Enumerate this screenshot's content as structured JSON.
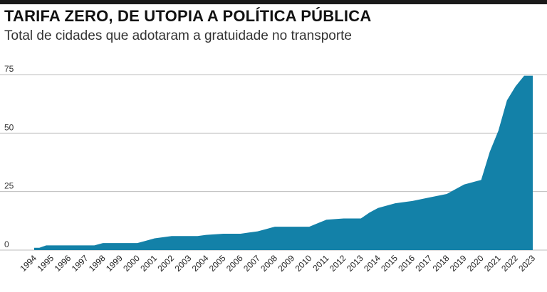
{
  "title": "TARIFA ZERO, DE UTOPIA A POLÍTICA PÚBLICA",
  "subtitle": "Total de cidades que adotaram a gratuidade no transporte",
  "colors": {
    "area": "#1381a8",
    "grid": "#bdbdbd",
    "bar": "#1a1a1a"
  },
  "chart_data": {
    "type": "area",
    "title": "TARIFA ZERO, DE UTOPIA A POLÍTICA PÚBLICA",
    "subtitle": "Total de cidades que adotaram a gratuidade no transporte",
    "xlabel": "",
    "ylabel": "",
    "ylim": [
      0,
      75
    ],
    "yticks": [
      0,
      25,
      50,
      75
    ],
    "grid": true,
    "categories": [
      "1994",
      "1995",
      "1996",
      "1997",
      "1998",
      "1999",
      "2000",
      "2001",
      "2002",
      "2003",
      "2004",
      "2005",
      "2006",
      "2007",
      "2008",
      "2009",
      "2010",
      "2011",
      "2012",
      "2013",
      "2014",
      "2015",
      "2016",
      "2017",
      "2018",
      "2019",
      "2020",
      "2021",
      "2022",
      "2023"
    ],
    "x": [
      1994.0,
      1994.3,
      1994.7,
      1995,
      1996,
      1997,
      1997.5,
      1998,
      1999,
      2000,
      2000.5,
      2001,
      2001.5,
      2002,
      2003,
      2003.5,
      2004,
      2005,
      2006,
      2006.5,
      2007,
      2007.5,
      2008,
      2009,
      2010,
      2010.5,
      2011,
      2012,
      2013,
      2013.5,
      2014,
      2015,
      2016,
      2017,
      2018,
      2019,
      2020,
      2020.5,
      2021,
      2021.5,
      2022,
      2022.5,
      2023
    ],
    "values": [
      1,
      1,
      2,
      2,
      2,
      2,
      2,
      3,
      3,
      3,
      4,
      5,
      5.5,
      6,
      6,
      6,
      6.5,
      7,
      7,
      7.5,
      8,
      9,
      10,
      10,
      10,
      11.5,
      13,
      13.5,
      13.5,
      16,
      18,
      20,
      21,
      22.5,
      24,
      28,
      30,
      42,
      51,
      64,
      70,
      74.5,
      74.5
    ]
  }
}
